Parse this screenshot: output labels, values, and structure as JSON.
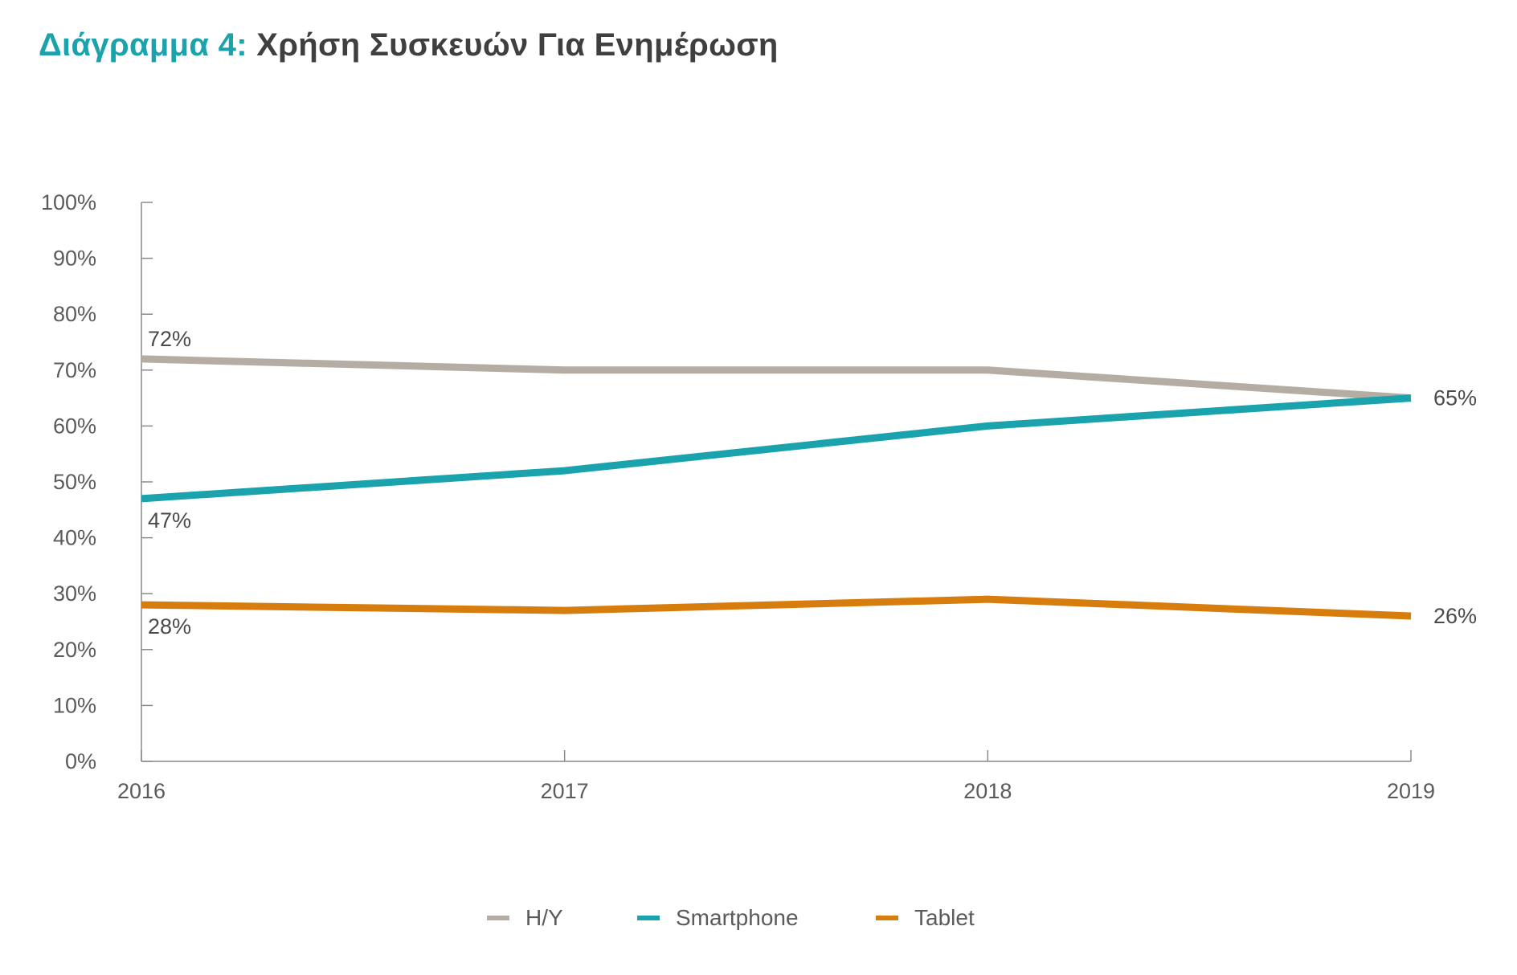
{
  "title": {
    "prefix": "Διάγραμμα 4:",
    "rest": " Χρήση Συσκευών Για Ενημέρωση"
  },
  "chart_data": {
    "type": "line",
    "title": "Διάγραμμα 4: Χρήση Συσκευών Για Ενημέρωση",
    "x": [
      "2016",
      "2017",
      "2018",
      "2019"
    ],
    "y_ticks": [
      "0%",
      "10%",
      "20%",
      "30%",
      "40%",
      "50%",
      "60%",
      "70%",
      "80%",
      "90%",
      "100%"
    ],
    "ylim": [
      0,
      100
    ],
    "grid": false,
    "legend_position": "bottom",
    "series": [
      {
        "name": "H/Y",
        "color": "#b5ada4",
        "values": [
          72,
          70,
          70,
          65
        ],
        "labels": [
          {
            "index": 0,
            "text": "72%",
            "position": "above"
          },
          {
            "index": 3,
            "text": "65%",
            "position": "right"
          }
        ]
      },
      {
        "name": "Smartphone",
        "color": "#1aa3ad",
        "values": [
          47,
          52,
          60,
          65
        ],
        "labels": [
          {
            "index": 0,
            "text": "47%",
            "position": "below"
          }
        ]
      },
      {
        "name": "Tablet",
        "color": "#d67d0e",
        "values": [
          28,
          27,
          29,
          26
        ],
        "labels": [
          {
            "index": 0,
            "text": "28%",
            "position": "below"
          },
          {
            "index": 3,
            "text": "26%",
            "position": "right"
          }
        ]
      }
    ]
  }
}
